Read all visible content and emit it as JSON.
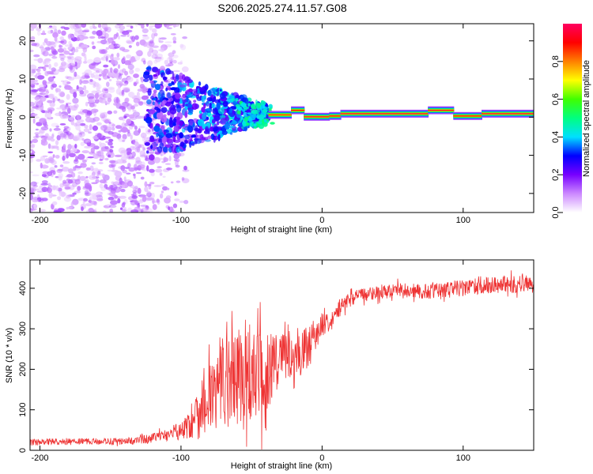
{
  "title": "S206.2025.274.11.57.G08",
  "chart_data": [
    {
      "type": "heatmap",
      "xlabel": "Height of straight line (km)",
      "ylabel": "Frequency (Hz)",
      "xlim": [
        -207,
        150
      ],
      "ylim": [
        -25,
        24.5
      ],
      "xticks": [
        -200,
        -100,
        0,
        100
      ],
      "yticks": [
        -20,
        -10,
        0,
        10,
        20
      ],
      "xtick_labels": [
        "-200",
        "-100",
        "0",
        "100"
      ],
      "ytick_labels": [
        "-20",
        "-10",
        "0",
        "10",
        "20"
      ],
      "colorbar": {
        "label": "Normalized spectral amplitude",
        "range": [
          0,
          1
        ],
        "ticks": [
          0.0,
          0.2,
          0.4,
          0.6,
          0.8
        ],
        "tick_labels": [
          "0.0",
          "0.2",
          "0.4",
          "0.6",
          "0.8"
        ],
        "colormap": [
          "#ffffff",
          "#cc88ff",
          "#7700ff",
          "#0000ff",
          "#00e0ff",
          "#00ff80",
          "#40ff00",
          "#ffff00",
          "#ff8000",
          "#ff0000",
          "#ff0060"
        ]
      },
      "noise_region": {
        "x_range": [
          -207,
          -95
        ],
        "freq_range": [
          -25,
          24.5
        ],
        "amplitude_range": [
          0.03,
          0.15
        ]
      },
      "transition_region": {
        "x_range": [
          -125,
          -38
        ],
        "freq_range": [
          -12,
          13
        ],
        "amplitude_range": [
          0.1,
          0.35
        ]
      },
      "band_segments": [
        {
          "x_start": -38,
          "x_end": -22,
          "freq": 0.6,
          "amplitude": 0.85
        },
        {
          "x_start": -22,
          "x_end": -13,
          "freq": 1.8,
          "amplitude": 0.9
        },
        {
          "x_start": -13,
          "x_end": 5,
          "freq": 0.1,
          "amplitude": 0.95
        },
        {
          "x_start": 5,
          "x_end": 13,
          "freq": 0.3,
          "amplitude": 0.9
        },
        {
          "x_start": 13,
          "x_end": 75,
          "freq": 0.9,
          "amplitude": 0.97
        },
        {
          "x_start": 75,
          "x_end": 93,
          "freq": 1.8,
          "amplitude": 0.95
        },
        {
          "x_start": 93,
          "x_end": 113,
          "freq": 0.3,
          "amplitude": 0.92
        },
        {
          "x_start": 113,
          "x_end": 150,
          "freq": 0.9,
          "amplitude": 0.97
        }
      ]
    },
    {
      "type": "line",
      "xlabel": "Height of straight line (km)",
      "ylabel": "SNR (10 * v/v)",
      "xlim": [
        -207,
        150
      ],
      "ylim": [
        0,
        470
      ],
      "xticks": [
        -200,
        -100,
        0,
        100
      ],
      "yticks": [
        0,
        100,
        200,
        300,
        400
      ],
      "xtick_labels": [
        "-200",
        "-100",
        "0",
        "100"
      ],
      "ytick_labels": [
        "0",
        "100",
        "200",
        "300",
        "400"
      ],
      "color": "#ee3333",
      "series": [
        {
          "name": "SNR",
          "x": [
            -207,
            -200,
            -190,
            -180,
            -170,
            -160,
            -150,
            -140,
            -130,
            -120,
            -110,
            -100,
            -95,
            -90,
            -85,
            -80,
            -75,
            -70,
            -65,
            -60,
            -55,
            -50,
            -45,
            -40,
            -35,
            -30,
            -25,
            -20,
            -15,
            -10,
            -5,
            0,
            5,
            10,
            15,
            20,
            25,
            30,
            40,
            50,
            60,
            70,
            80,
            90,
            100,
            110,
            120,
            130,
            140,
            150
          ],
          "y": [
            20,
            20,
            21,
            21,
            22,
            22,
            22,
            22,
            25,
            30,
            38,
            50,
            60,
            85,
            110,
            130,
            150,
            165,
            180,
            185,
            185,
            185,
            170,
            150,
            220,
            230,
            235,
            245,
            240,
            250,
            285,
            310,
            320,
            340,
            360,
            375,
            380,
            385,
            390,
            395,
            395,
            392,
            395,
            400,
            400,
            405,
            408,
            410,
            410,
            410
          ],
          "spread": [
            8,
            8,
            8,
            8,
            8,
            8,
            8,
            8,
            10,
            12,
            15,
            25,
            35,
            60,
            80,
            90,
            100,
            110,
            120,
            130,
            140,
            140,
            130,
            110,
            90,
            75,
            65,
            60,
            60,
            55,
            40,
            30,
            25,
            20,
            20,
            18,
            18,
            18,
            18,
            18,
            18,
            18,
            20,
            20,
            20,
            20,
            20,
            22,
            22,
            22
          ]
        }
      ]
    }
  ]
}
